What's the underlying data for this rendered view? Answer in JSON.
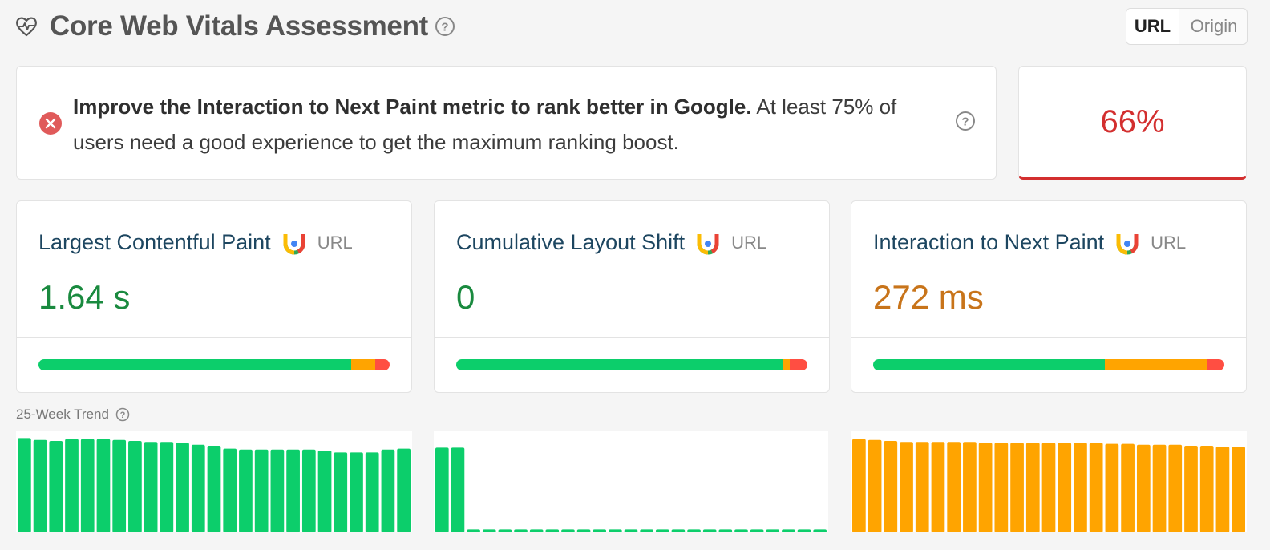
{
  "header": {
    "title": "Core Web Vitals Assessment",
    "toggle": {
      "active": "URL",
      "inactive": "Origin"
    }
  },
  "assessment": {
    "message_bold": "Improve the Interaction to Next Paint metric to rank better in Google.",
    "message_rest": " At least 75% of users need a good experience to get the maximum ranking boost.",
    "score": "66%",
    "score_color": "#d32f2f"
  },
  "metrics": [
    {
      "name": "Largest Contentful Paint",
      "scope": "URL",
      "value": "1.64 s",
      "value_color": "#1a8a3f",
      "distribution": {
        "good": 0.89,
        "needs_improvement": 0.07,
        "poor": 0.04
      }
    },
    {
      "name": "Cumulative Layout Shift",
      "scope": "URL",
      "value": "0",
      "value_color": "#1a8a3f",
      "distribution": {
        "good": 0.93,
        "needs_improvement": 0.02,
        "poor": 0.05
      }
    },
    {
      "name": "Interaction to Next Paint",
      "scope": "URL",
      "value": "272 ms",
      "value_color": "#c8741a",
      "distribution": {
        "good": 0.66,
        "needs_improvement": 0.29,
        "poor": 0.05
      }
    }
  ],
  "trend": {
    "label": "25-Week Trend",
    "series": [
      {
        "color": "#0cce6b",
        "values": [
          0.98,
          0.96,
          0.95,
          0.97,
          0.97,
          0.97,
          0.96,
          0.95,
          0.94,
          0.94,
          0.93,
          0.91,
          0.9,
          0.87,
          0.86,
          0.86,
          0.86,
          0.86,
          0.86,
          0.85,
          0.83,
          0.83,
          0.83,
          0.86,
          0.87
        ]
      },
      {
        "color": "#0cce6b",
        "values": [
          0.88,
          0.88,
          0.03,
          0.03,
          0.03,
          0.03,
          0.03,
          0.03,
          0.03,
          0.03,
          0.03,
          0.03,
          0.03,
          0.03,
          0.03,
          0.03,
          0.03,
          0.03,
          0.03,
          0.03,
          0.03,
          0.03,
          0.03,
          0.03,
          0.03
        ]
      },
      {
        "color": "#ffa400",
        "values": [
          0.97,
          0.96,
          0.95,
          0.94,
          0.94,
          0.94,
          0.94,
          0.94,
          0.93,
          0.93,
          0.93,
          0.93,
          0.93,
          0.93,
          0.93,
          0.93,
          0.92,
          0.92,
          0.91,
          0.91,
          0.91,
          0.9,
          0.9,
          0.89,
          0.89
        ]
      }
    ]
  }
}
